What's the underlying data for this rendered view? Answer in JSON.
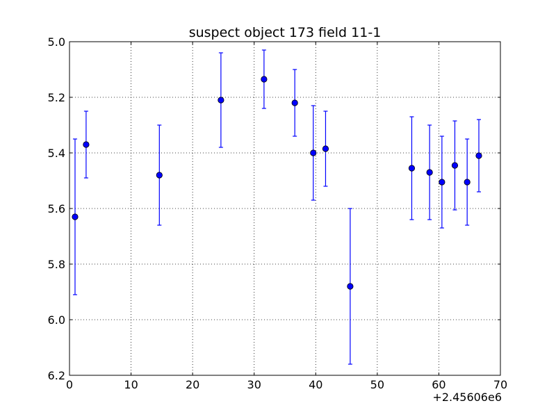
{
  "chart_data": {
    "type": "scatter",
    "title": "suspect object 173 field 11-1",
    "xlabel": "",
    "ylabel": "",
    "x_offset_label": "+2.45606e6",
    "xlim": [
      0,
      70
    ],
    "ylim": [
      5.0,
      6.2
    ],
    "y_inverted": true,
    "grid": true,
    "x_ticks": [
      "0",
      "10",
      "20",
      "30",
      "40",
      "50",
      "60",
      "70"
    ],
    "y_ticks": [
      "5.0",
      "5.2",
      "5.4",
      "5.6",
      "5.8",
      "6.0",
      "6.2"
    ],
    "series": [
      {
        "color": "#0000ff",
        "marker": "circle",
        "errorbars": true,
        "points": [
          {
            "x": 2456060.9,
            "y": 5.63,
            "err": 0.28
          },
          {
            "x": 2456062.7,
            "y": 5.37,
            "err": 0.12
          },
          {
            "x": 2456074.6,
            "y": 5.48,
            "err": 0.18
          },
          {
            "x": 2456084.6,
            "y": 5.21,
            "err": 0.17
          },
          {
            "x": 2456091.6,
            "y": 5.135,
            "err": 0.105
          },
          {
            "x": 2456096.6,
            "y": 5.22,
            "err": 0.12
          },
          {
            "x": 2456099.6,
            "y": 5.4,
            "err": 0.17
          },
          {
            "x": 2456101.6,
            "y": 5.385,
            "err": 0.135
          },
          {
            "x": 2456105.6,
            "y": 5.88,
            "err": 0.28
          },
          {
            "x": 2456115.6,
            "y": 5.455,
            "err": 0.185
          },
          {
            "x": 2456118.5,
            "y": 5.47,
            "err": 0.17
          },
          {
            "x": 2456120.5,
            "y": 5.505,
            "err": 0.165
          },
          {
            "x": 2456122.6,
            "y": 5.445,
            "err": 0.16
          },
          {
            "x": 2456124.6,
            "y": 5.505,
            "err": 0.155
          },
          {
            "x": 2456126.5,
            "y": 5.41,
            "err": 0.13
          }
        ]
      }
    ]
  }
}
